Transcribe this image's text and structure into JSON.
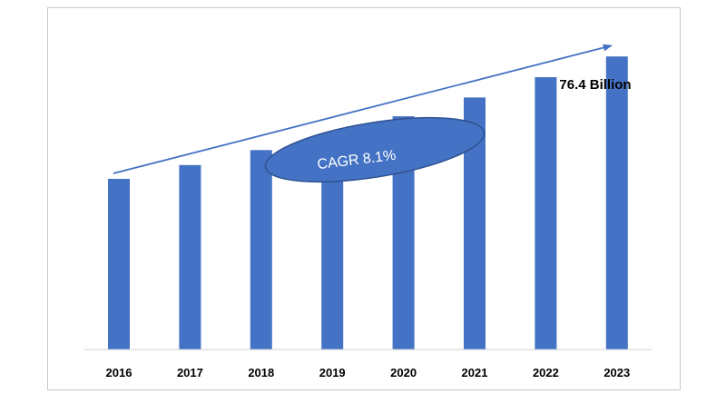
{
  "chart_data": {
    "type": "bar",
    "categories": [
      "2016",
      "2017",
      "2018",
      "2019",
      "2020",
      "2021",
      "2022",
      "2023"
    ],
    "values": [
      44.5,
      48.1,
      52.0,
      56.2,
      60.8,
      65.7,
      71.0,
      76.4
    ],
    "ylim": [
      0,
      89
    ],
    "bar_color": "#4472c4",
    "grid": false,
    "annotations": {
      "end_value_label": "76.4 Billion",
      "cagr_label": "CAGR 8.1%",
      "trend_arrow": true
    }
  }
}
